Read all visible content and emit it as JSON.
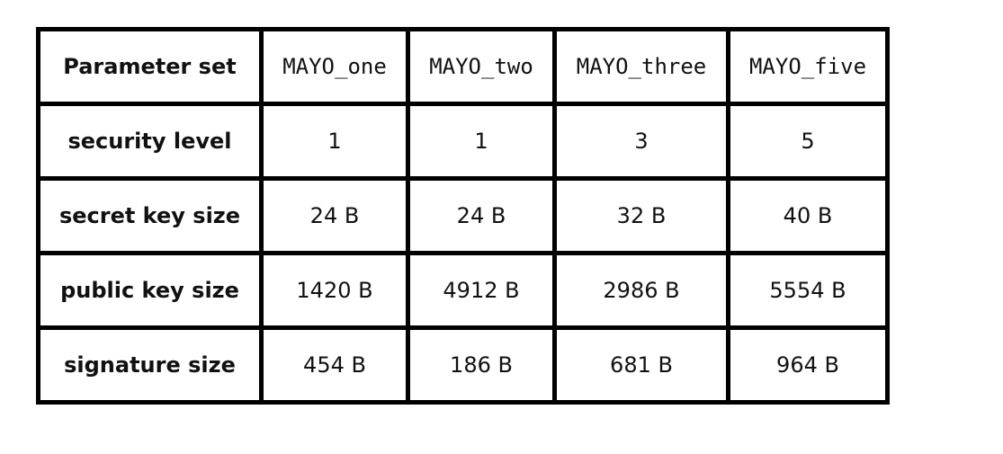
{
  "table": {
    "header": {
      "label": "Parameter set",
      "columns": [
        "MAYO_one",
        "MAYO_two",
        "MAYO_three",
        "MAYO_five"
      ]
    },
    "rows": [
      {
        "label": "security level",
        "values": [
          "1",
          "1",
          "3",
          "5"
        ]
      },
      {
        "label": "secret key size",
        "values": [
          "24 B",
          "24 B",
          "32 B",
          "40 B"
        ]
      },
      {
        "label": "public key size",
        "values": [
          "1420 B",
          "4912 B",
          "2986 B",
          "5554 B"
        ]
      },
      {
        "label": "signature size",
        "values": [
          "454 B",
          "186 B",
          "681 B",
          "964 B"
        ]
      }
    ]
  }
}
